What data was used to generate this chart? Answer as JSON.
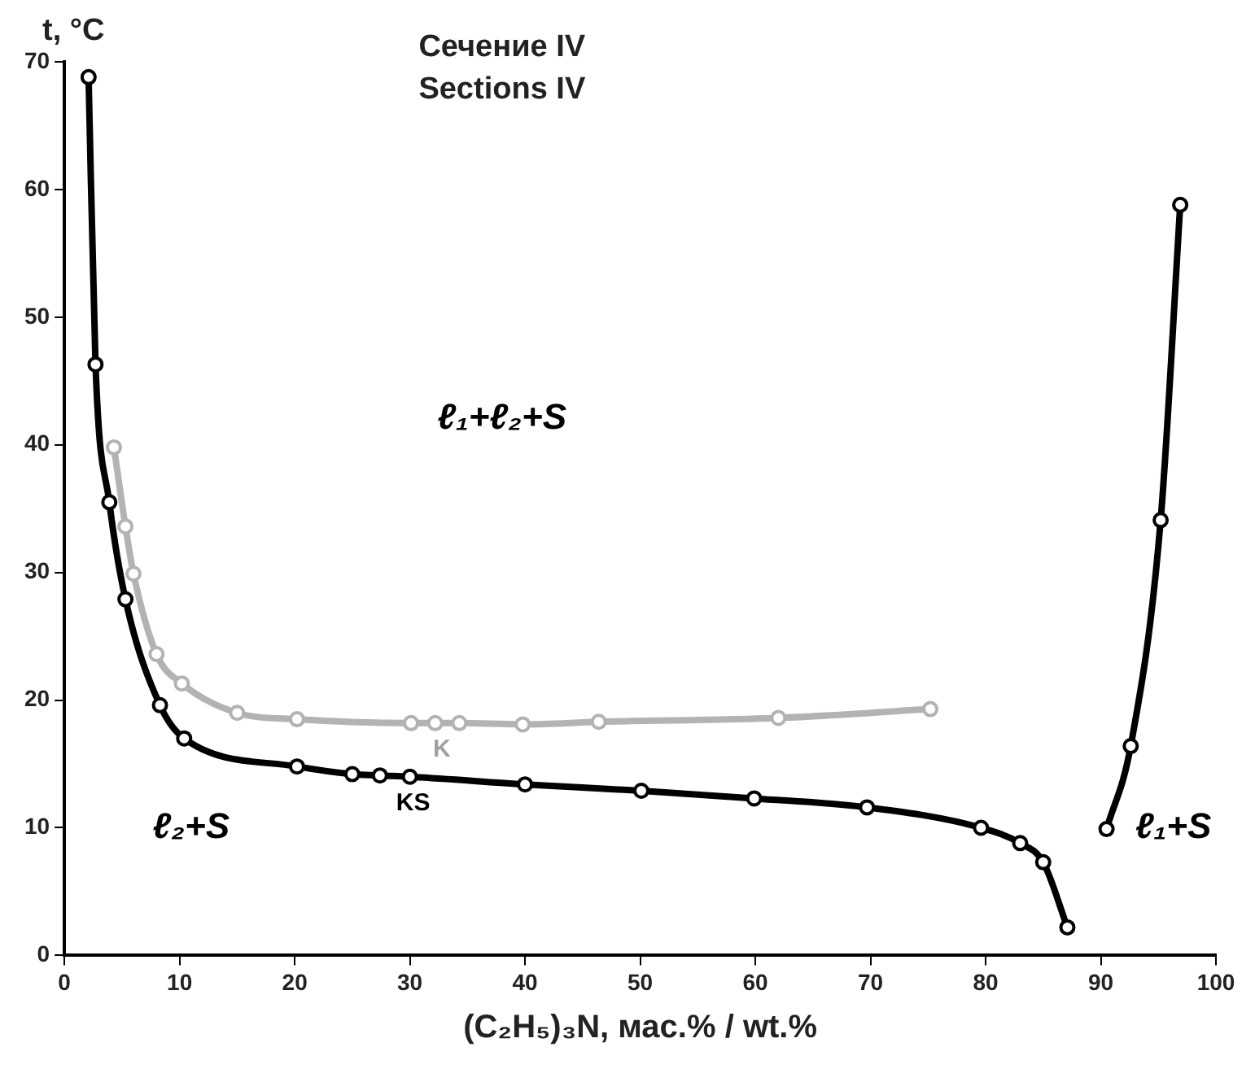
{
  "chart_data": {
    "type": "line",
    "title": "Сечение IV",
    "subtitle": "Sections IV",
    "xlabel": "(C₂H₅)₃N, мас.% / wt.%",
    "ylabel": "t, °C",
    "series": [
      {
        "color": "#000000",
        "x": [
          2.1,
          2.7,
          3.9,
          5.3,
          8.3,
          10.4,
          20.2,
          25,
          27.4,
          30,
          40,
          50.1,
          59.9,
          69.7,
          79.6,
          83,
          85,
          87.1
        ],
        "values": [
          68.8,
          46.3,
          35.5,
          27.9,
          19.6,
          17.0,
          14.8,
          14.2,
          14.1,
          14.0,
          13.4,
          12.9,
          12.3,
          11.6,
          10.0,
          8.8,
          7.3,
          2.2
        ]
      },
      {
        "color": "#b3b3b3",
        "x": [
          4.3,
          5.3,
          6.0,
          8.0,
          10.2,
          15.0,
          20.2,
          30.1,
          32.2,
          34.3,
          39.8,
          46.4,
          62.0,
          75.2
        ],
        "values": [
          39.8,
          33.6,
          29.9,
          23.6,
          21.3,
          19.0,
          18.5,
          18.2,
          18.2,
          18.2,
          18.1,
          18.3,
          18.6,
          19.3
        ]
      },
      {
        "color": "#000000",
        "x": [
          90.5,
          92.6,
          95.2,
          96.9
        ],
        "values": [
          9.9,
          16.4,
          34.1,
          58.8
        ]
      }
    ],
    "annotations": [
      {
        "text": "K",
        "x": 32.2,
        "y": 18.2
      },
      {
        "text": "KS",
        "x": 30,
        "y": 14.0
      },
      "ℓ₁+ℓ₂+S",
      "ℓ₂+S",
      "ℓ₁+S"
    ],
    "xlim": [
      0,
      100
    ],
    "xticks": [
      0,
      10,
      20,
      30,
      40,
      50,
      60,
      70,
      80,
      90,
      100
    ],
    "ylim": [
      0,
      70
    ],
    "yticks": [
      0,
      10,
      20,
      30,
      40,
      50,
      60,
      70
    ],
    "grid": false,
    "legend": false,
    "marker": "circle",
    "line_style": "solid"
  }
}
